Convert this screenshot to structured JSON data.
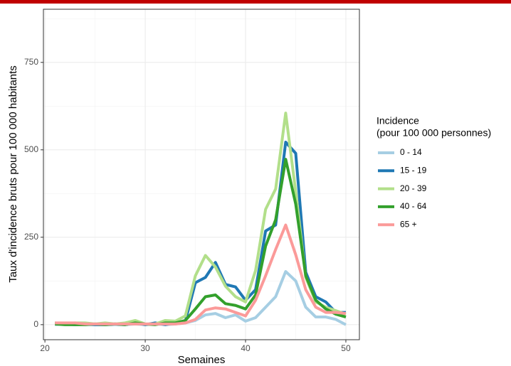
{
  "chart_data": {
    "type": "line",
    "x_label": "Semaines",
    "y_label": "Taux d'incidence bruts pour 100 000 habitants",
    "legend_title": [
      "Incidence",
      "(pour 100 000 personnes)"
    ],
    "legend_position": "right",
    "grid": true,
    "xlim": [
      19.85,
      51.35
    ],
    "ylim": [
      -43,
      902
    ],
    "xticks": [
      20,
      30,
      40,
      50
    ],
    "yticks": [
      0,
      250,
      500,
      750
    ],
    "minor_xticks": [
      25,
      35,
      45
    ],
    "minor_yticks": [
      125,
      375,
      625,
      875
    ],
    "x": [
      21,
      22,
      23,
      24,
      25,
      26,
      27,
      28,
      29,
      30,
      31,
      32,
      33,
      34,
      35,
      36,
      37,
      38,
      39,
      40,
      41,
      42,
      43,
      44,
      45,
      46,
      47,
      48,
      49,
      50
    ],
    "series": [
      {
        "name": "0 - 14",
        "color": "#a6cee3",
        "values": [
          0,
          2,
          2,
          0,
          0,
          0,
          0,
          0,
          2,
          0,
          2,
          0,
          2,
          5,
          12,
          28,
          32,
          20,
          28,
          10,
          20,
          50,
          80,
          152,
          125,
          50,
          22,
          22,
          15,
          0
        ]
      },
      {
        "name": "15 - 19",
        "color": "#1f78b4",
        "values": [
          5,
          2,
          0,
          2,
          0,
          0,
          2,
          0,
          5,
          0,
          5,
          0,
          5,
          10,
          120,
          135,
          178,
          115,
          108,
          70,
          100,
          268,
          285,
          522,
          490,
          150,
          80,
          65,
          35,
          35
        ]
      },
      {
        "name": "20 - 39",
        "color": "#b2df8a",
        "values": [
          5,
          2,
          5,
          5,
          2,
          5,
          2,
          5,
          12,
          2,
          2,
          12,
          10,
          25,
          140,
          198,
          165,
          110,
          80,
          65,
          155,
          330,
          388,
          605,
          380,
          135,
          65,
          50,
          40,
          30
        ]
      },
      {
        "name": "40 - 64",
        "color": "#33a02c",
        "values": [
          2,
          0,
          0,
          0,
          2,
          0,
          2,
          0,
          5,
          2,
          0,
          5,
          5,
          12,
          45,
          80,
          85,
          60,
          55,
          45,
          85,
          225,
          300,
          473,
          345,
          140,
          70,
          45,
          30,
          22
        ]
      },
      {
        "name": "65 +",
        "color": "#fb9a99",
        "values": [
          5,
          5,
          5,
          2,
          2,
          2,
          2,
          2,
          2,
          2,
          2,
          2,
          2,
          5,
          15,
          42,
          48,
          45,
          35,
          25,
          70,
          140,
          215,
          285,
          200,
          100,
          50,
          35,
          35,
          32
        ]
      }
    ]
  }
}
